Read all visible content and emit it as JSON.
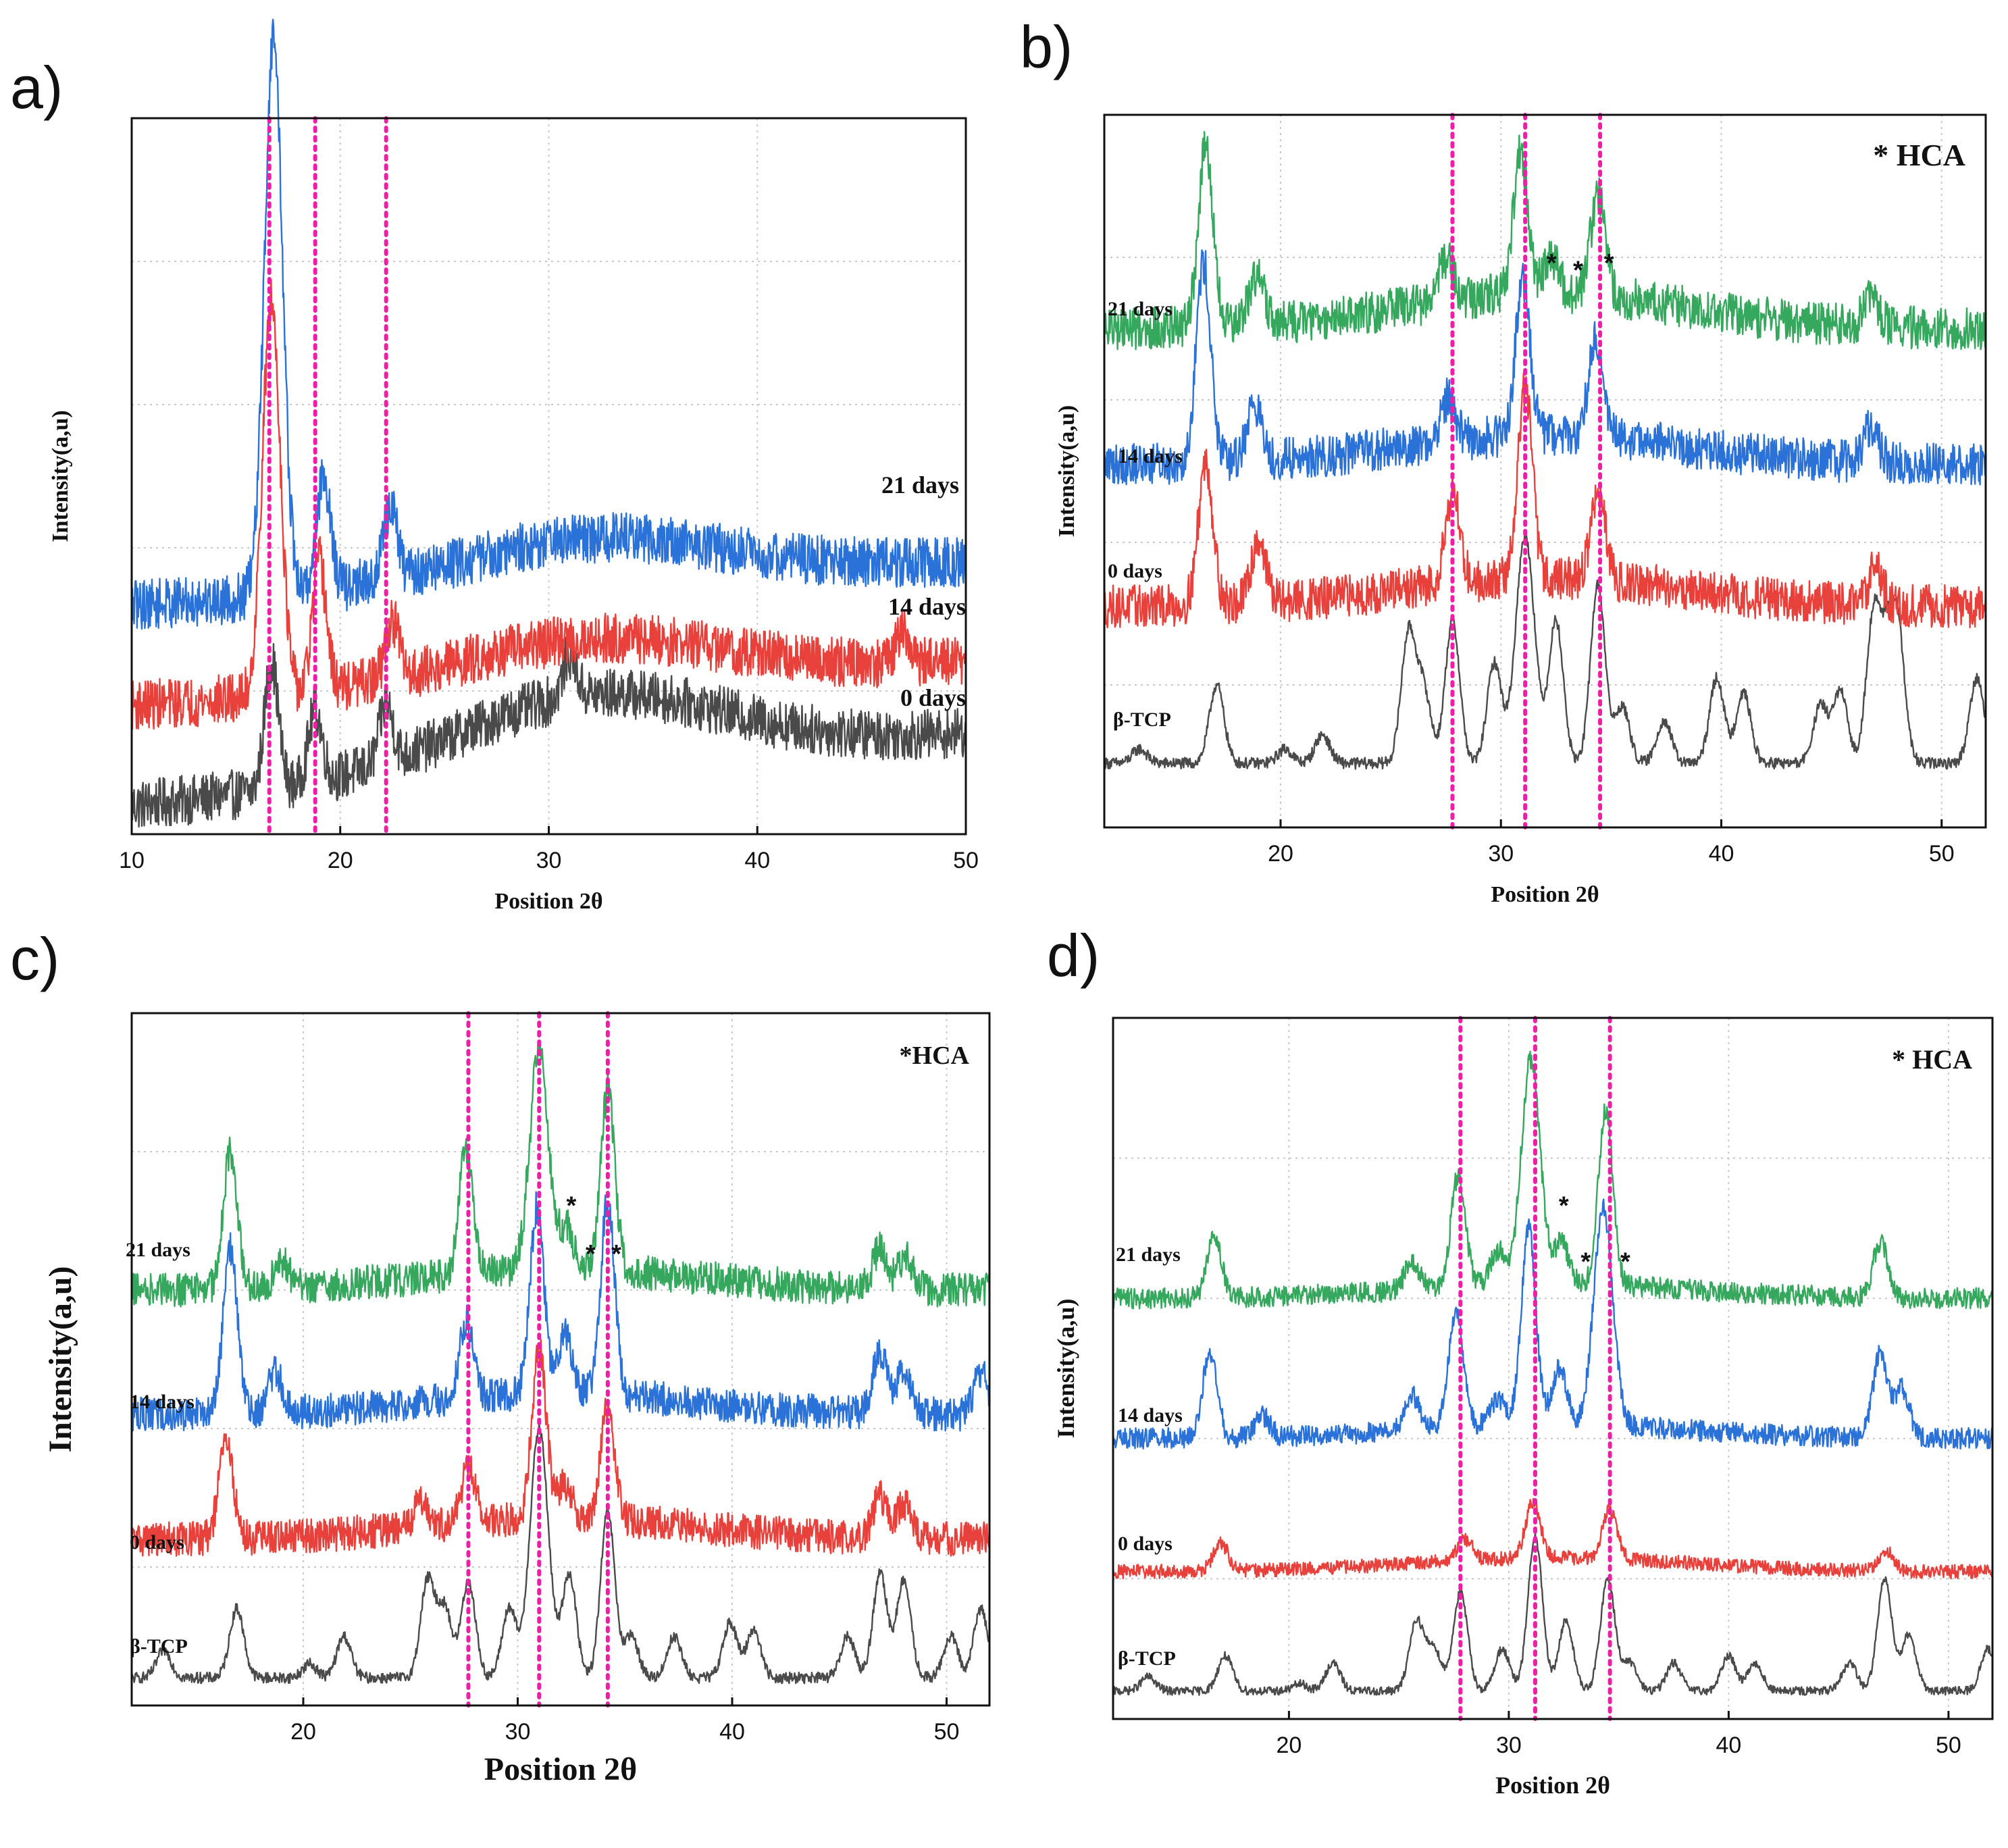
{
  "colors": {
    "c0": "#4a4a4a",
    "c1": "#e8413c",
    "c2": "#2a72d8",
    "c3": "#35a85e",
    "ref": "#ee1fa6"
  },
  "chart_data": [
    {
      "panel": "a)",
      "type": "line",
      "title": "",
      "xlabel": "Position 2θ",
      "ylabel": "Intensity(a,u)",
      "xlim": [
        10,
        50
      ],
      "xticks": [
        10,
        20,
        30,
        40,
        50
      ],
      "hca": "",
      "ref_lines": [
        16.6,
        18.8,
        22.2
      ],
      "stars": [],
      "series": [
        {
          "name": "0 days",
          "color": "#4a4a4a",
          "baseline": 0.04,
          "slope": 0.1,
          "noise": 0.035,
          "cryst": 1.0,
          "amorph": 0.1,
          "peaks": [
            [
              16.7,
              0.18
            ],
            [
              18.8,
              0.1
            ],
            [
              22.2,
              0.08
            ],
            [
              31.0,
              0.06
            ]
          ]
        },
        {
          "name": "14 days",
          "color": "#e8413c",
          "baseline": 0.18,
          "slope": 0.06,
          "noise": 0.035,
          "cryst": 1.0,
          "amorph": 0.06,
          "peaks": [
            [
              16.7,
              0.55
            ],
            [
              19.0,
              0.18
            ],
            [
              22.5,
              0.08
            ],
            [
              47.0,
              0.04
            ]
          ]
        },
        {
          "name": "21 days",
          "color": "#2a72d8",
          "baseline": 0.32,
          "slope": 0.06,
          "noise": 0.035,
          "cryst": 1.0,
          "amorph": 0.06,
          "peaks": [
            [
              16.8,
              0.78
            ],
            [
              19.2,
              0.16
            ],
            [
              22.4,
              0.1
            ]
          ]
        }
      ]
    },
    {
      "panel": "b)",
      "type": "line",
      "title": "",
      "xlabel": "Position 2θ",
      "ylabel": "Intensity(a,u)",
      "xlim": [
        12,
        52
      ],
      "xticks": [
        20,
        30,
        40,
        50
      ],
      "hca": "* HCA",
      "ref_lines": [
        27.8,
        31.1,
        34.5
      ],
      "stars": [
        {
          "x": 32.3,
          "y": 0.78
        },
        {
          "x": 33.5,
          "y": 0.77
        },
        {
          "x": 34.9,
          "y": 0.78
        }
      ],
      "series": [
        {
          "name": "β-TCP",
          "color": "#4a4a4a",
          "baseline": 0.09,
          "slope": 0.0,
          "noise": 0.008,
          "cryst": 1.0,
          "amorph": 0.0,
          "peaks": [
            [
              13.6,
              0.02
            ],
            [
              17.1,
              0.11
            ],
            [
              20.2,
              0.02
            ],
            [
              21.9,
              0.04
            ],
            [
              25.8,
              0.18
            ],
            [
              26.5,
              0.1
            ],
            [
              27.8,
              0.2
            ],
            [
              29.7,
              0.14
            ],
            [
              31.1,
              0.32
            ],
            [
              32.5,
              0.2
            ],
            [
              34.4,
              0.25
            ],
            [
              35.5,
              0.08
            ],
            [
              37.4,
              0.06
            ],
            [
              39.8,
              0.12
            ],
            [
              41.0,
              0.1
            ],
            [
              44.5,
              0.08
            ],
            [
              45.4,
              0.1
            ],
            [
              46.9,
              0.2
            ],
            [
              47.5,
              0.12
            ],
            [
              48.0,
              0.18
            ],
            [
              51.6,
              0.12
            ]
          ]
        },
        {
          "name": "0 days",
          "color": "#e8413c",
          "baseline": 0.31,
          "slope": 0.0,
          "noise": 0.03,
          "cryst": 1.0,
          "amorph": 0.04,
          "peaks": [
            [
              16.6,
              0.2
            ],
            [
              19.0,
              0.09
            ],
            [
              27.8,
              0.13
            ],
            [
              31.1,
              0.27
            ],
            [
              34.4,
              0.12
            ],
            [
              47.0,
              0.05
            ]
          ]
        },
        {
          "name": "14 days",
          "color": "#2a72d8",
          "baseline": 0.51,
          "slope": 0.0,
          "noise": 0.03,
          "cryst": 1.0,
          "amorph": 0.04,
          "peaks": [
            [
              16.5,
              0.28
            ],
            [
              18.8,
              0.08
            ],
            [
              27.6,
              0.06
            ],
            [
              31.0,
              0.22
            ],
            [
              34.3,
              0.14
            ],
            [
              46.8,
              0.05
            ]
          ]
        },
        {
          "name": "21 days",
          "color": "#35a85e",
          "baseline": 0.7,
          "slope": 0.0,
          "noise": 0.03,
          "cryst": 1.0,
          "amorph": 0.05,
          "peaks": [
            [
              16.6,
              0.25
            ],
            [
              18.9,
              0.07
            ],
            [
              27.5,
              0.06
            ],
            [
              30.9,
              0.2
            ],
            [
              32.3,
              0.05
            ],
            [
              34.4,
              0.14
            ],
            [
              46.8,
              0.04
            ]
          ]
        }
      ]
    },
    {
      "panel": "c)",
      "type": "line",
      "title": "",
      "xlabel": "Position 2θ",
      "ylabel": "Intensity(a,u)",
      "xlim": [
        12,
        52
      ],
      "xticks": [
        20,
        30,
        40,
        50
      ],
      "hca": "*HCA",
      "ref_lines": [
        27.7,
        31.0,
        34.2
      ],
      "stars": [
        {
          "x": 32.5,
          "y": 0.71
        },
        {
          "x": 33.4,
          "y": 0.64
        },
        {
          "x": 34.6,
          "y": 0.64
        }
      ],
      "series": [
        {
          "name": "β-TCP",
          "color": "#4a4a4a",
          "baseline": 0.04,
          "slope": 0.0,
          "noise": 0.008,
          "cryst": 1.0,
          "amorph": 0.0,
          "peaks": [
            [
              13.5,
              0.04
            ],
            [
              16.9,
              0.1
            ],
            [
              20.3,
              0.02
            ],
            [
              21.9,
              0.06
            ],
            [
              25.8,
              0.14
            ],
            [
              26.6,
              0.1
            ],
            [
              27.7,
              0.14
            ],
            [
              29.6,
              0.1
            ],
            [
              31.0,
              0.36
            ],
            [
              32.4,
              0.15
            ],
            [
              34.2,
              0.24
            ],
            [
              35.3,
              0.06
            ],
            [
              37.3,
              0.06
            ],
            [
              39.9,
              0.08
            ],
            [
              41.0,
              0.07
            ],
            [
              45.4,
              0.06
            ],
            [
              46.9,
              0.15
            ],
            [
              48.0,
              0.14
            ],
            [
              50.2,
              0.06
            ],
            [
              51.6,
              0.1
            ]
          ]
        },
        {
          "name": "0 days",
          "color": "#e8413c",
          "baseline": 0.24,
          "slope": 0.0,
          "noise": 0.025,
          "cryst": 1.0,
          "amorph": 0.03,
          "peaks": [
            [
              16.4,
              0.14
            ],
            [
              25.5,
              0.04
            ],
            [
              27.7,
              0.08
            ],
            [
              31.0,
              0.25
            ],
            [
              32.2,
              0.05
            ],
            [
              34.2,
              0.16
            ],
            [
              46.9,
              0.06
            ],
            [
              48.0,
              0.05
            ]
          ]
        },
        {
          "name": "14 days",
          "color": "#2a72d8",
          "baseline": 0.42,
          "slope": 0.0,
          "noise": 0.025,
          "cryst": 1.0,
          "amorph": 0.03,
          "peaks": [
            [
              16.6,
              0.24
            ],
            [
              18.7,
              0.06
            ],
            [
              27.6,
              0.11
            ],
            [
              30.9,
              0.27
            ],
            [
              32.2,
              0.09
            ],
            [
              34.2,
              0.28
            ],
            [
              46.9,
              0.09
            ],
            [
              48.0,
              0.06
            ],
            [
              51.6,
              0.06
            ]
          ]
        },
        {
          "name": "21 days",
          "color": "#35a85e",
          "baseline": 0.6,
          "slope": 0.0,
          "noise": 0.025,
          "cryst": 1.0,
          "amorph": 0.03,
          "peaks": [
            [
              16.6,
              0.2
            ],
            [
              19.0,
              0.04
            ],
            [
              27.6,
              0.18
            ],
            [
              31.0,
              0.32
            ],
            [
              32.3,
              0.06
            ],
            [
              34.2,
              0.26
            ],
            [
              46.9,
              0.06
            ],
            [
              48.1,
              0.05
            ]
          ]
        }
      ]
    },
    {
      "panel": "d)",
      "type": "line",
      "title": "",
      "xlabel": "Position 2θ",
      "ylabel": "Intensity(a,u)",
      "xlim": [
        12,
        52
      ],
      "xticks": [
        20,
        30,
        40,
        50
      ],
      "hca": "* HCA",
      "ref_lines": [
        27.8,
        31.2,
        34.6
      ],
      "stars": [
        {
          "x": 32.5,
          "y": 0.72
        },
        {
          "x": 33.5,
          "y": 0.64
        },
        {
          "x": 35.3,
          "y": 0.64
        }
      ],
      "series": [
        {
          "name": "β-TCP",
          "color": "#4a4a4a",
          "baseline": 0.04,
          "slope": 0.0,
          "noise": 0.006,
          "cryst": 1.0,
          "amorph": 0.0,
          "peaks": [
            [
              13.6,
              0.02
            ],
            [
              17.1,
              0.05
            ],
            [
              20.5,
              0.01
            ],
            [
              22.0,
              0.04
            ],
            [
              25.8,
              0.1
            ],
            [
              26.6,
              0.06
            ],
            [
              27.8,
              0.14
            ],
            [
              29.7,
              0.06
            ],
            [
              31.2,
              0.22
            ],
            [
              32.6,
              0.1
            ],
            [
              34.5,
              0.16
            ],
            [
              35.5,
              0.04
            ],
            [
              37.5,
              0.04
            ],
            [
              40.0,
              0.05
            ],
            [
              41.2,
              0.04
            ],
            [
              45.5,
              0.04
            ],
            [
              47.1,
              0.16
            ],
            [
              48.2,
              0.08
            ],
            [
              51.8,
              0.06
            ]
          ]
        },
        {
          "name": "0 days",
          "color": "#e8413c",
          "baseline": 0.21,
          "slope": 0.0,
          "noise": 0.01,
          "cryst": 1.0,
          "amorph": 0.02,
          "peaks": [
            [
              16.9,
              0.04
            ],
            [
              28.0,
              0.03
            ],
            [
              31.1,
              0.08
            ],
            [
              34.6,
              0.07
            ],
            [
              47.2,
              0.03
            ]
          ]
        },
        {
          "name": "14 days",
          "color": "#2a72d8",
          "baseline": 0.4,
          "slope": 0.0,
          "noise": 0.015,
          "cryst": 1.0,
          "amorph": 0.02,
          "peaks": [
            [
              16.4,
              0.12
            ],
            [
              18.8,
              0.03
            ],
            [
              25.6,
              0.05
            ],
            [
              27.6,
              0.17
            ],
            [
              29.5,
              0.04
            ],
            [
              30.9,
              0.28
            ],
            [
              32.3,
              0.08
            ],
            [
              34.3,
              0.31
            ],
            [
              46.9,
              0.12
            ],
            [
              47.9,
              0.07
            ]
          ]
        },
        {
          "name": "21 days",
          "color": "#35a85e",
          "baseline": 0.6,
          "slope": 0.0,
          "noise": 0.015,
          "cryst": 1.0,
          "amorph": 0.02,
          "peaks": [
            [
              16.6,
              0.09
            ],
            [
              25.6,
              0.04
            ],
            [
              27.7,
              0.16
            ],
            [
              29.5,
              0.05
            ],
            [
              31.0,
              0.32
            ],
            [
              32.4,
              0.06
            ],
            [
              34.4,
              0.25
            ],
            [
              46.9,
              0.08
            ]
          ]
        }
      ]
    }
  ]
}
